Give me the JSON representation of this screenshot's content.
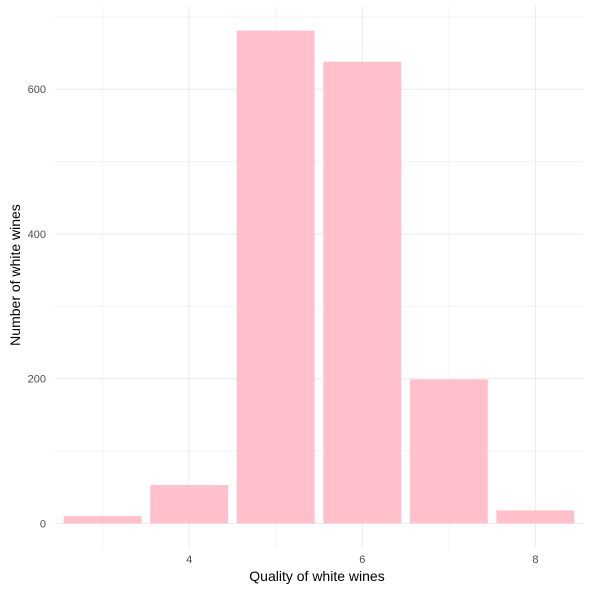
{
  "chart_data": {
    "type": "bar",
    "x": [
      3,
      4,
      5,
      6,
      7,
      8
    ],
    "values": [
      10,
      53,
      681,
      638,
      199,
      18
    ],
    "xlabel": "Quality of white wines",
    "ylabel": "Number of white wines",
    "x_ticks": [
      "4",
      "6",
      "8"
    ],
    "y_ticks": [
      "0",
      "200",
      "400",
      "600"
    ],
    "xlim": [
      2.45,
      8.55
    ],
    "ylim": [
      -34,
      715
    ],
    "grid": true,
    "bar_color": "#ffc0cb",
    "theme": "minimal"
  }
}
